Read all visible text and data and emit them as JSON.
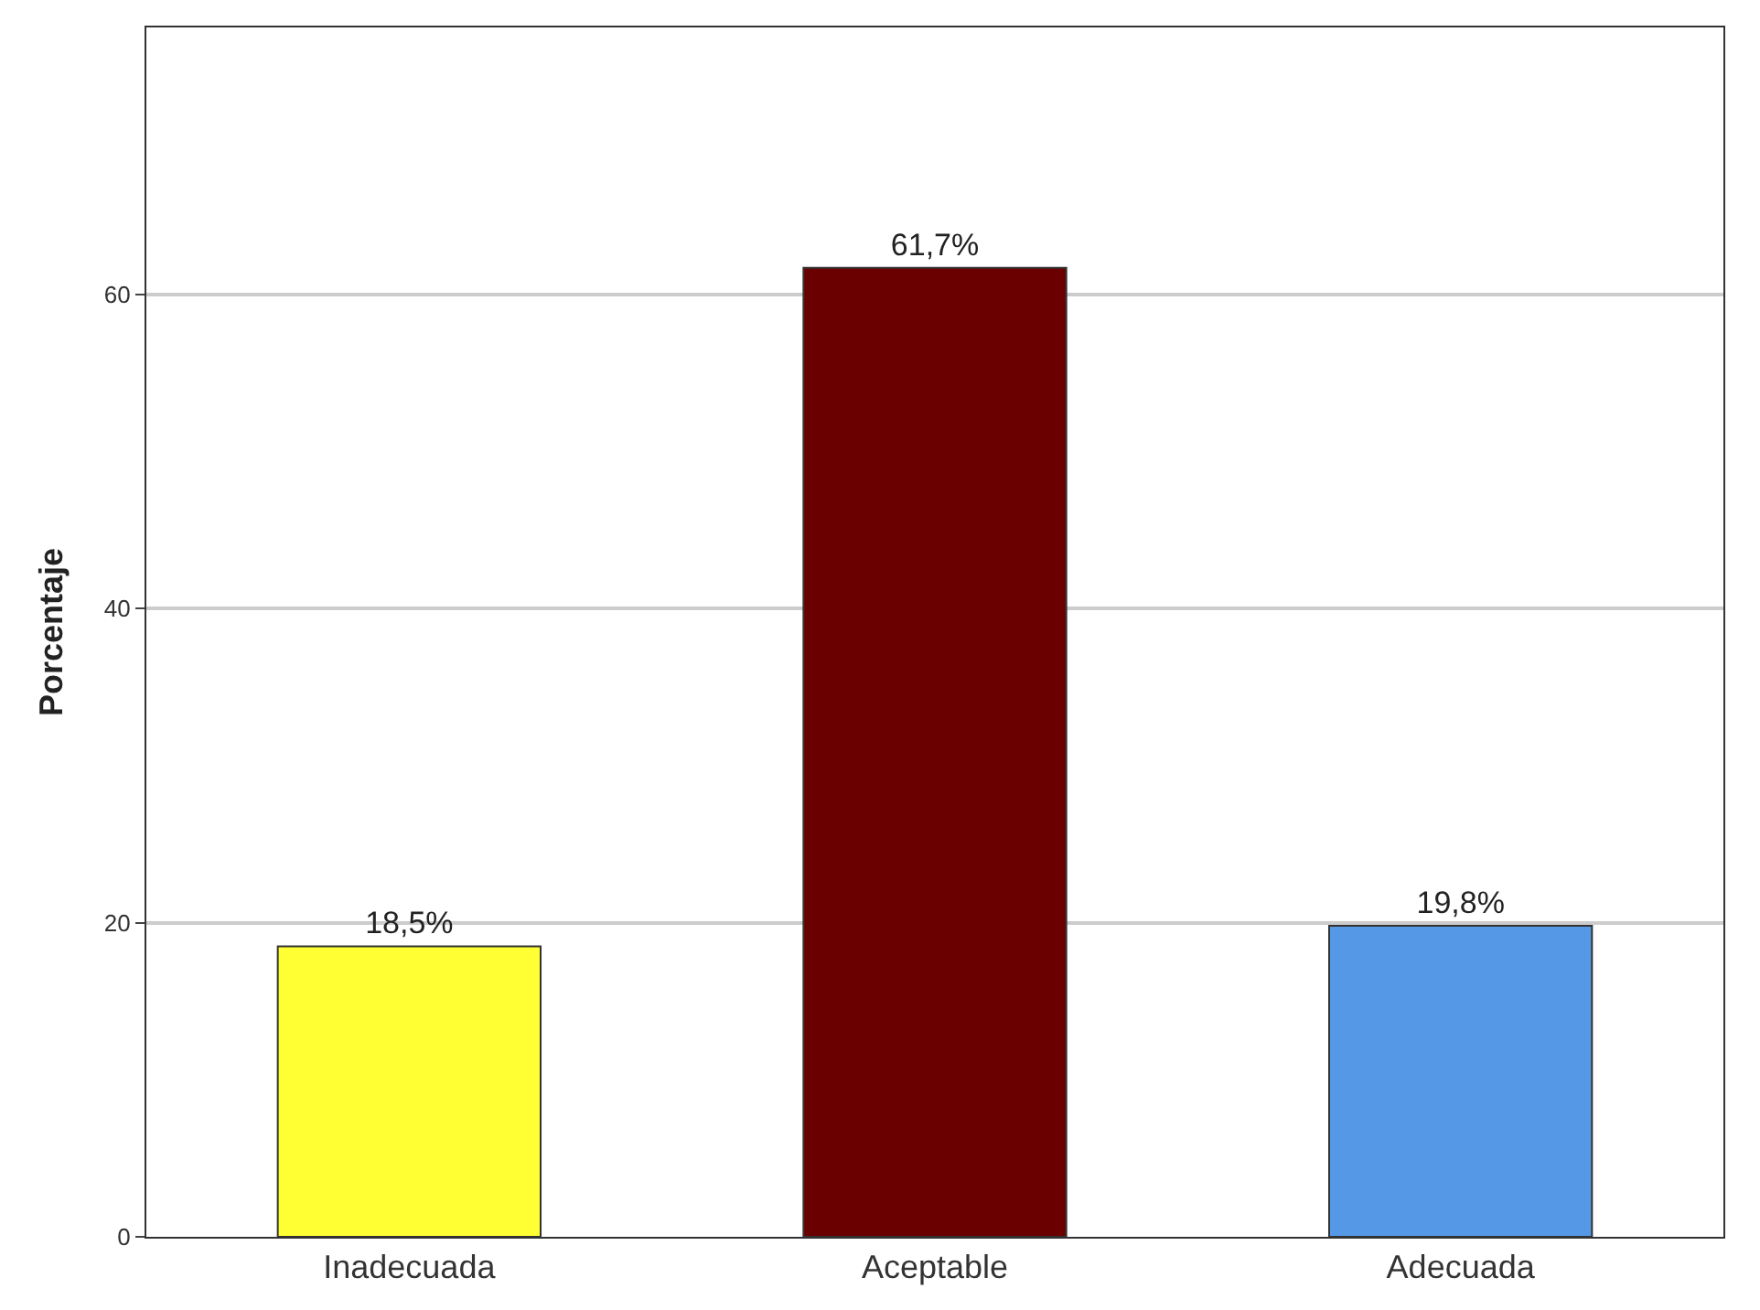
{
  "chart_data": {
    "type": "bar",
    "ylabel": "Porcentaje",
    "categories": [
      "Inadecuada",
      "Aceptable",
      "Adecuada"
    ],
    "values": [
      18.5,
      61.7,
      19.8
    ],
    "colors": [
      "#ffff33",
      "#6b0000",
      "#5599e6"
    ],
    "value_labels": [
      "18,5%",
      "61,7%",
      "19,8%"
    ],
    "ylim": [
      0,
      77
    ],
    "yticks": [
      0,
      20,
      40,
      60
    ],
    "grid": "y"
  }
}
